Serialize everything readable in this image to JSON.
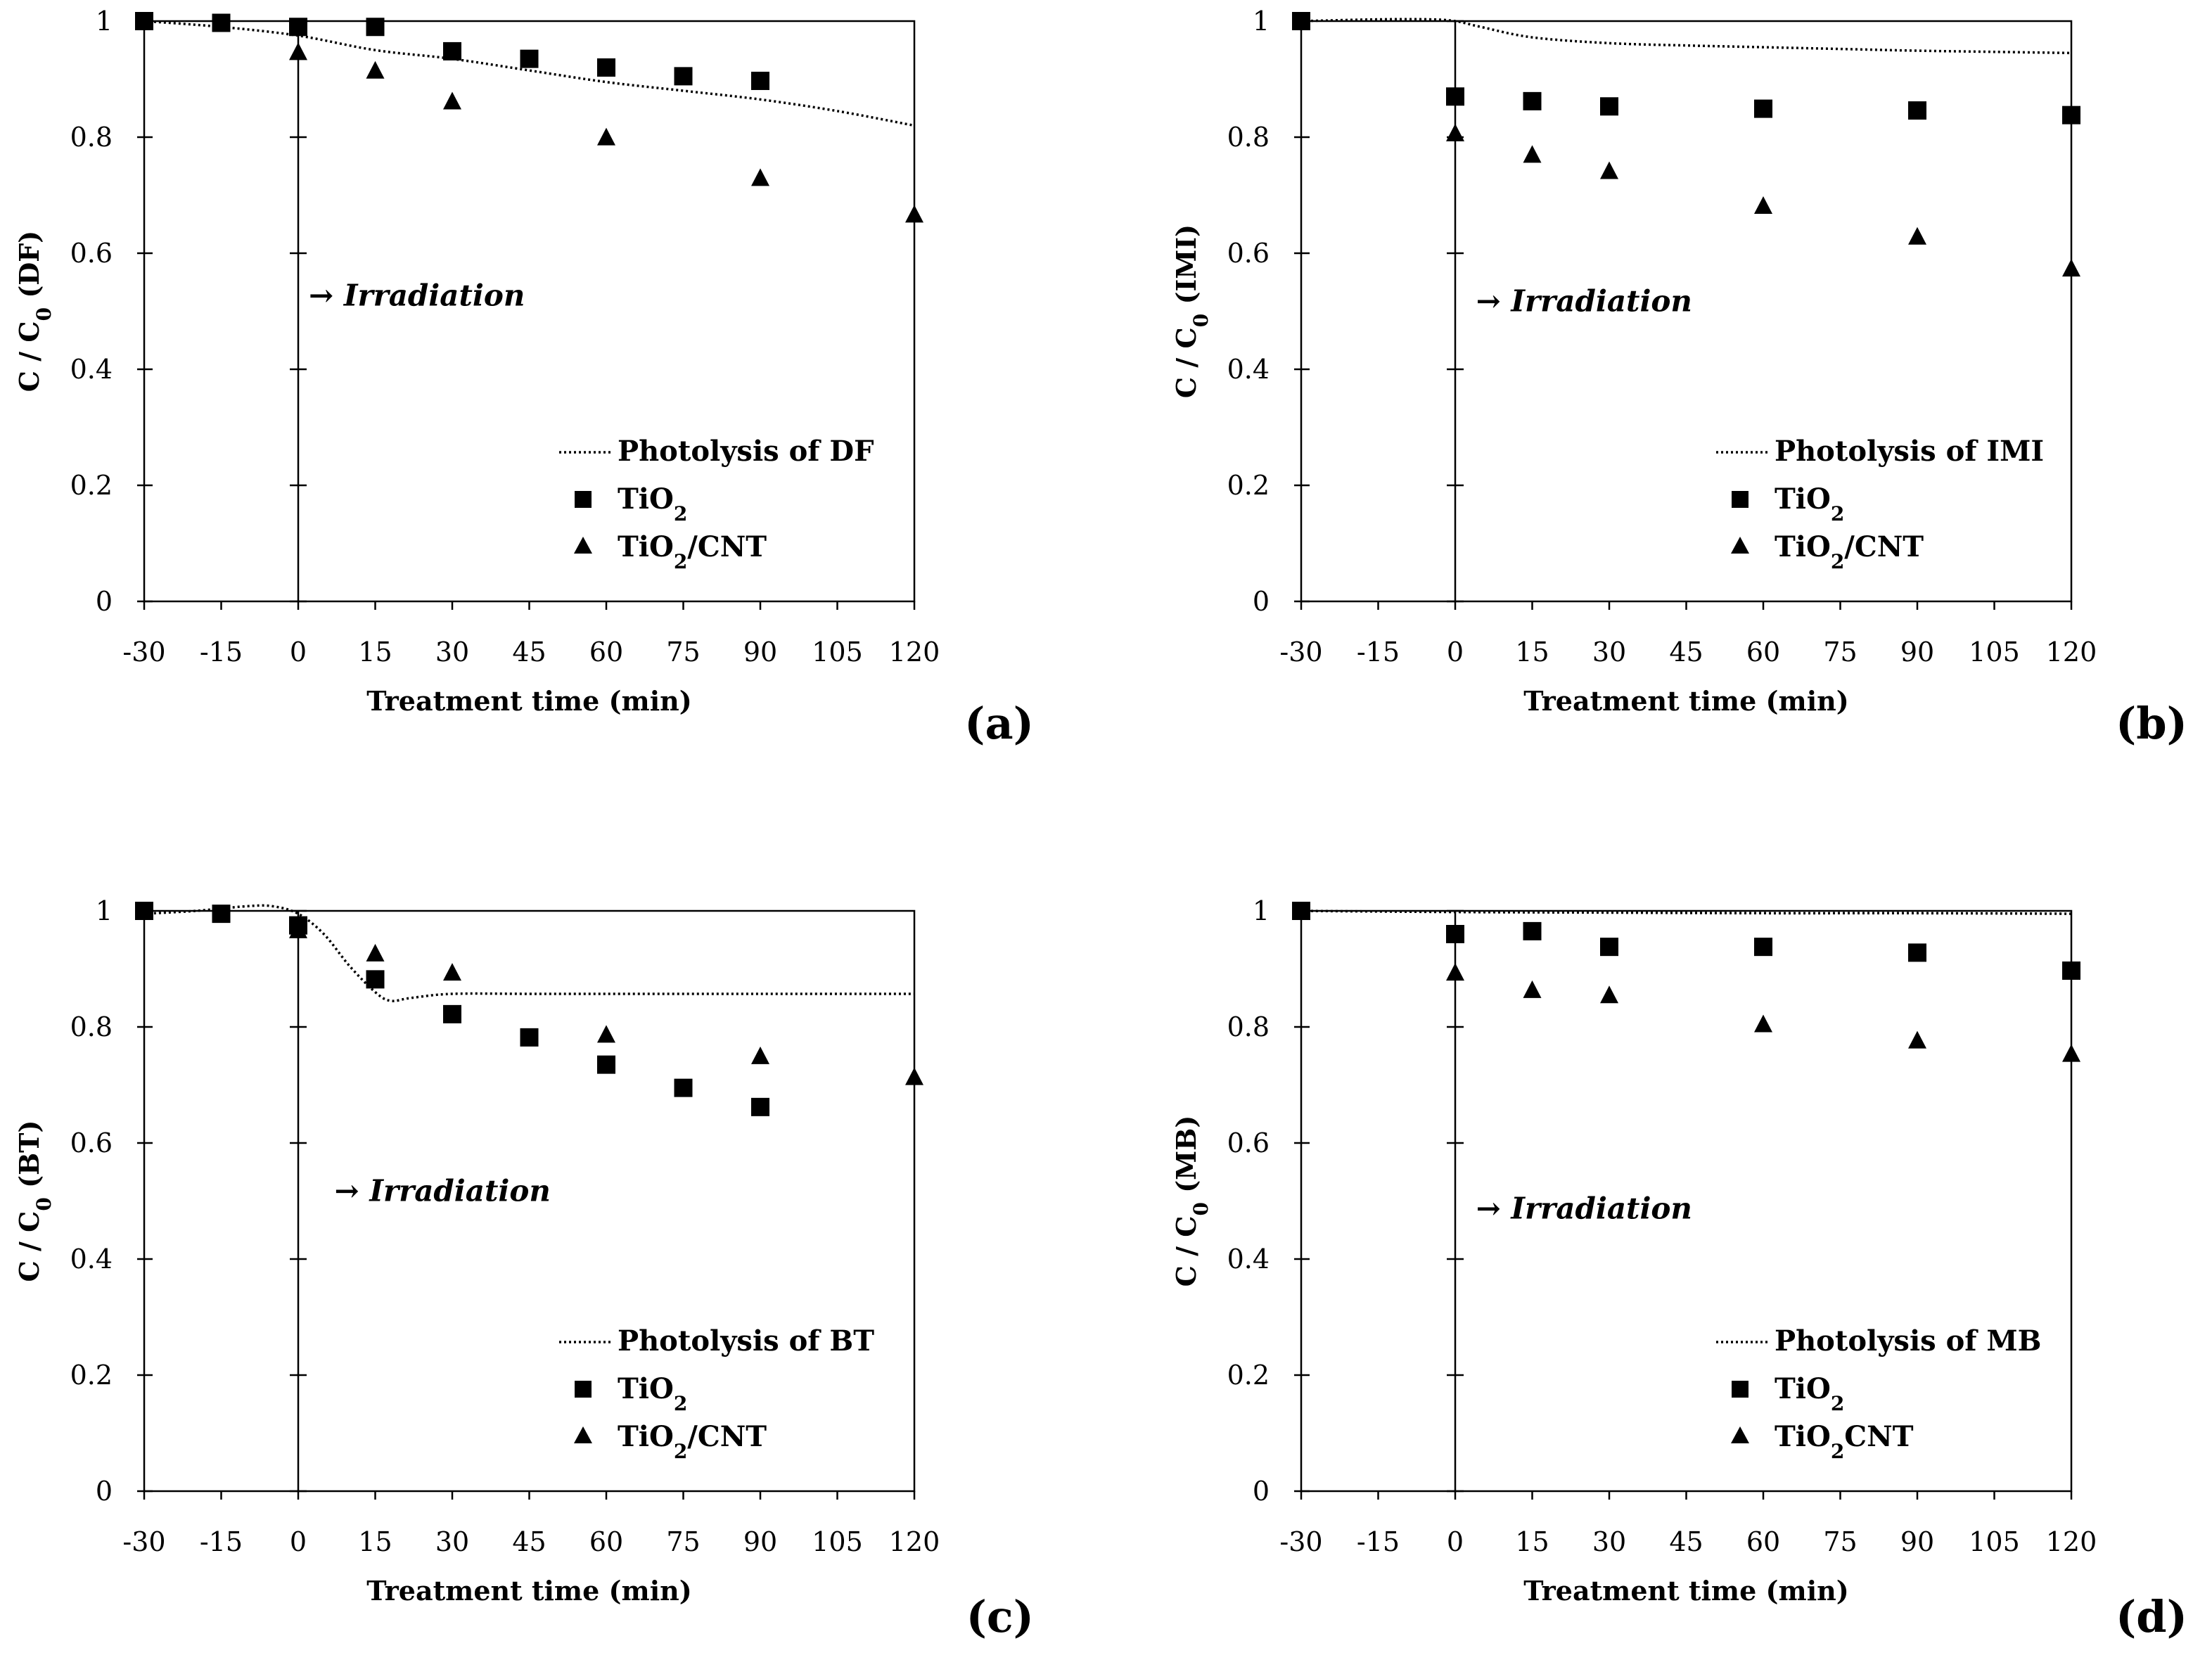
{
  "chart_data": [
    {
      "type": "scatter",
      "panel_label": "(a)",
      "xlabel": "Treatment time (min)",
      "ylabel_main": "C / C",
      "ylabel_sub": "0",
      "ylabel_tail": " (DF)",
      "xlim": [
        -30,
        120
      ],
      "ylim": [
        0,
        1
      ],
      "x_ticks": [
        -30,
        -15,
        0,
        15,
        30,
        45,
        60,
        75,
        90,
        105,
        120
      ],
      "y_ticks": [
        0,
        0.2,
        0.4,
        0.6,
        0.8,
        1
      ],
      "y_tick_labels": [
        "0",
        "0.2",
        "0.4",
        "0.6",
        "0.8",
        "1"
      ],
      "annotation": "→ Irradiation",
      "annotation_anchor": [
        0,
        0.51
      ],
      "legend": {
        "position": "bottom-right",
        "photolysis_label": "Photolysis of DF",
        "series1_label_main": "TiO",
        "series1_label_sub": "2",
        "series1_label_tail": "",
        "series2_label_main": "TiO",
        "series2_label_sub": "2",
        "series2_label_tail": "/CNT"
      },
      "photolysis": {
        "name": "Photolysis of DF",
        "style": "dotted",
        "x": [
          -30,
          -15,
          0,
          15,
          30,
          45,
          60,
          75,
          90,
          105,
          120
        ],
        "y": [
          1.0,
          0.99,
          0.975,
          0.95,
          0.935,
          0.915,
          0.895,
          0.88,
          0.865,
          0.845,
          0.82
        ]
      },
      "series": [
        {
          "name": "TiO2",
          "marker": "square",
          "x": [
            -30,
            -15,
            0,
            15,
            30,
            45,
            60,
            75,
            90
          ],
          "y": [
            1.0,
            0.997,
            0.99,
            0.99,
            0.948,
            0.935,
            0.92,
            0.905,
            0.897
          ]
        },
        {
          "name": "TiO2/CNT",
          "marker": "triangle",
          "x": [
            0,
            15,
            30,
            60,
            90,
            120
          ],
          "y": [
            0.945,
            0.913,
            0.86,
            0.798,
            0.728,
            0.665
          ]
        }
      ]
    },
    {
      "type": "scatter",
      "panel_label": "(b)",
      "xlabel": "Treatment time (min)",
      "ylabel_main": "C / C",
      "ylabel_sub": "0",
      "ylabel_tail": " (IMI)",
      "xlim": [
        -30,
        120
      ],
      "ylim": [
        0,
        1
      ],
      "x_ticks": [
        -30,
        -15,
        0,
        15,
        30,
        45,
        60,
        75,
        90,
        105,
        120
      ],
      "y_ticks": [
        0,
        0.2,
        0.4,
        0.6,
        0.8,
        1
      ],
      "y_tick_labels": [
        "0",
        "0.2",
        "0.4",
        "0.6",
        "0.8",
        "1"
      ],
      "annotation": "→ Irradiation",
      "annotation_anchor": [
        2,
        0.5
      ],
      "legend": {
        "position": "bottom-right",
        "photolysis_label": "Photolysis of IMI",
        "series1_label_main": "TiO",
        "series1_label_sub": "2",
        "series1_label_tail": "",
        "series2_label_main": "TiO",
        "series2_label_sub": "2",
        "series2_label_tail": "/CNT"
      },
      "photolysis": {
        "name": "Photolysis of IMI",
        "style": "dotted",
        "x": [
          -30,
          -15,
          -5,
          0,
          5,
          15,
          30,
          45,
          60,
          75,
          90,
          105,
          120
        ],
        "y": [
          1.0,
          1.003,
          1.003,
          1.0,
          0.99,
          0.972,
          0.962,
          0.958,
          0.955,
          0.952,
          0.949,
          0.947,
          0.945
        ]
      },
      "series": [
        {
          "name": "TiO2",
          "marker": "square",
          "x": [
            -30,
            0,
            15,
            30,
            60,
            90,
            120
          ],
          "y": [
            1.0,
            0.87,
            0.862,
            0.853,
            0.849,
            0.846,
            0.838
          ]
        },
        {
          "name": "TiO2/CNT",
          "marker": "triangle",
          "x": [
            0,
            15,
            30,
            60,
            90,
            120
          ],
          "y": [
            0.805,
            0.768,
            0.74,
            0.68,
            0.627,
            0.572
          ]
        }
      ]
    },
    {
      "type": "scatter",
      "panel_label": "(c)",
      "xlabel": "Treatment time (min)",
      "ylabel_main": "C / C",
      "ylabel_sub": "0",
      "ylabel_tail": " (BT)",
      "xlim": [
        -30,
        120
      ],
      "ylim": [
        0,
        1
      ],
      "x_ticks": [
        -30,
        -15,
        0,
        15,
        30,
        45,
        60,
        75,
        90,
        105,
        120
      ],
      "y_ticks": [
        0,
        0.2,
        0.4,
        0.6,
        0.8,
        1
      ],
      "y_tick_labels": [
        "0",
        "0.2",
        "0.4",
        "0.6",
        "0.8",
        "1"
      ],
      "annotation": "→ Irradiation",
      "annotation_anchor": [
        5,
        0.5
      ],
      "legend": {
        "position": "bottom-right",
        "photolysis_label": "Photolysis of BT",
        "series1_label_main": "TiO",
        "series1_label_sub": "2",
        "series1_label_tail": "",
        "series2_label_main": "TiO",
        "series2_label_sub": "2",
        "series2_label_tail": "/CNT"
      },
      "photolysis": {
        "name": "Photolysis of BT",
        "style": "dotted",
        "x": [
          -30,
          -20,
          -10,
          -5,
          0,
          5,
          10,
          15,
          18,
          22,
          30,
          45,
          60,
          90,
          120
        ],
        "y": [
          0.995,
          1.0,
          1.008,
          1.008,
          0.995,
          0.96,
          0.905,
          0.86,
          0.845,
          0.85,
          0.857,
          0.857,
          0.857,
          0.857,
          0.857
        ]
      },
      "series": [
        {
          "name": "TiO2",
          "marker": "square",
          "x": [
            -30,
            -15,
            0,
            15,
            30,
            45,
            60,
            75,
            90
          ],
          "y": [
            1.0,
            0.995,
            0.975,
            0.882,
            0.822,
            0.782,
            0.735,
            0.695,
            0.662
          ]
        },
        {
          "name": "TiO2/CNT",
          "marker": "triangle",
          "x": [
            0,
            15,
            30,
            60,
            90,
            120
          ],
          "y": [
            0.965,
            0.925,
            0.892,
            0.785,
            0.748,
            0.712
          ]
        }
      ]
    },
    {
      "type": "scatter",
      "panel_label": "(d)",
      "xlabel": "Treatment time (min)",
      "ylabel_main": "C / C",
      "ylabel_sub": "0",
      "ylabel_tail": " (MB)",
      "xlim": [
        -30,
        120
      ],
      "ylim": [
        0,
        1
      ],
      "x_ticks": [
        -30,
        -15,
        0,
        15,
        30,
        45,
        60,
        75,
        90,
        105,
        120
      ],
      "y_ticks": [
        0,
        0.2,
        0.4,
        0.6,
        0.8,
        1
      ],
      "y_tick_labels": [
        "0",
        "0.2",
        "0.4",
        "0.6",
        "0.8",
        "1"
      ],
      "annotation": "→ Irradiation",
      "annotation_anchor": [
        2,
        0.47
      ],
      "legend": {
        "position": "bottom-right",
        "photolysis_label": "Photolysis of MB",
        "series1_label_main": "TiO",
        "series1_label_sub": "2",
        "series1_label_tail": "",
        "series2_label_main": "TiO",
        "series2_label_sub": "2",
        "series2_label_tail": "CNT"
      },
      "photolysis": {
        "name": "Photolysis of MB",
        "style": "dotted",
        "x": [
          -30,
          0,
          30,
          60,
          90,
          120
        ],
        "y": [
          1.0,
          0.998,
          0.997,
          0.996,
          0.996,
          0.995
        ]
      },
      "series": [
        {
          "name": "TiO2",
          "marker": "square",
          "x": [
            -30,
            0,
            15,
            30,
            60,
            90,
            120
          ],
          "y": [
            1.0,
            0.96,
            0.965,
            0.938,
            0.938,
            0.928,
            0.897
          ]
        },
        {
          "name": "TiO2CNT",
          "marker": "triangle",
          "x": [
            0,
            15,
            30,
            60,
            90,
            120
          ],
          "y": [
            0.892,
            0.862,
            0.853,
            0.803,
            0.775,
            0.752
          ]
        }
      ]
    }
  ]
}
